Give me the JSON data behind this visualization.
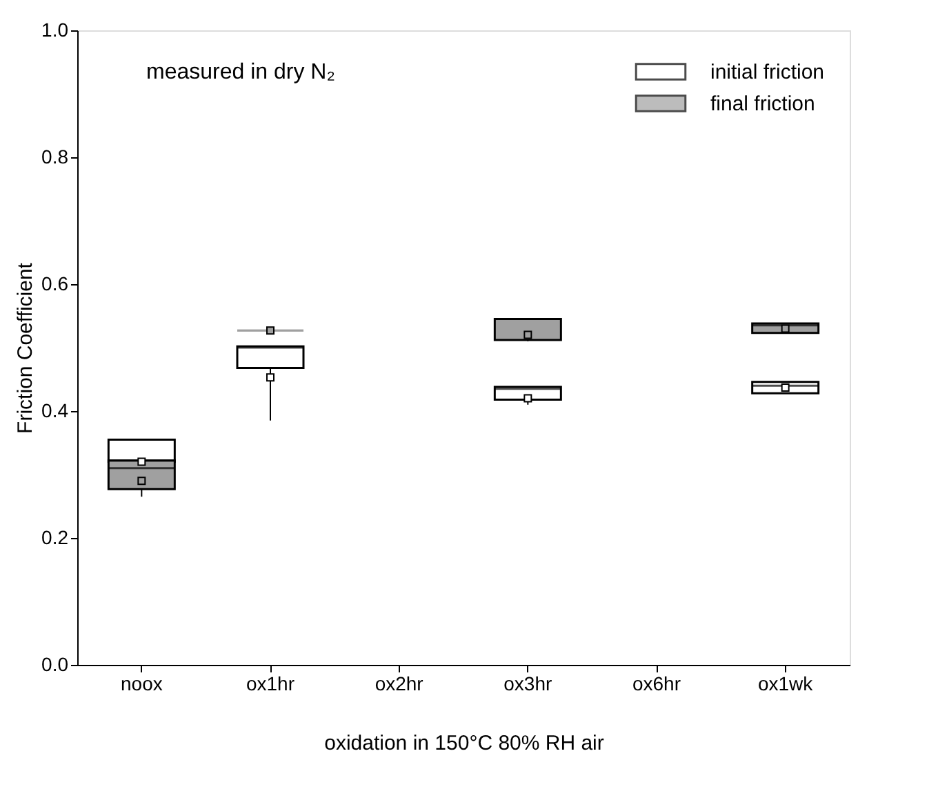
{
  "chart_data": {
    "type": "box",
    "xlabel": "oxidation in 150°C 80% RH air",
    "ylabel": "Friction Coefficient",
    "categories": [
      "noox",
      "ox1hr",
      "ox2hr",
      "ox3hr",
      "ox6hr",
      "ox1wk"
    ],
    "ylim": [
      0,
      1
    ],
    "yticks": [
      {
        "value": 0,
        "label": "0.0"
      },
      0.2,
      0.4,
      0.6,
      0.8,
      {
        "value": 1,
        "label": "1.0"
      }
    ],
    "annotations": [
      "measured in dry N₂"
    ],
    "legend": "top right",
    "grid": false,
    "series": [
      {
        "name": "initial friction",
        "color": "#ffffff",
        "boxes": [
          {
            "low": 0.32,
            "q1": 0.32,
            "median": 0.322,
            "q3": 0.355,
            "high": 0.355,
            "mean": 0.32
          },
          {
            "low": 0.385,
            "q1": 0.468,
            "median": 0.5,
            "q3": 0.502,
            "high": 0.502,
            "mean": 0.453
          },
          null,
          {
            "low": 0.41,
            "q1": 0.418,
            "median": 0.435,
            "q3": 0.438,
            "high": 0.438,
            "mean": 0.42
          },
          null,
          {
            "low": 0.428,
            "q1": 0.428,
            "median": 0.44,
            "q3": 0.446,
            "high": 0.446,
            "mean": 0.437
          }
        ]
      },
      {
        "name": "final friction",
        "color": "#a0a0a0",
        "boxes": [
          {
            "low": 0.265,
            "q1": 0.277,
            "median": 0.31,
            "q3": 0.322,
            "high": 0.322,
            "mean": 0.29
          },
          {
            "low": 0.527,
            "q1": 0.527,
            "median": 0.527,
            "q3": 0.527,
            "high": 0.527,
            "mean": 0.527
          },
          null,
          {
            "low": 0.51,
            "q1": 0.512,
            "median": 0.545,
            "q3": 0.545,
            "high": 0.545,
            "mean": 0.52
          },
          null,
          {
            "low": 0.523,
            "q1": 0.523,
            "median": 0.535,
            "q3": 0.538,
            "high": 0.538,
            "mean": 0.53
          }
        ]
      }
    ]
  }
}
